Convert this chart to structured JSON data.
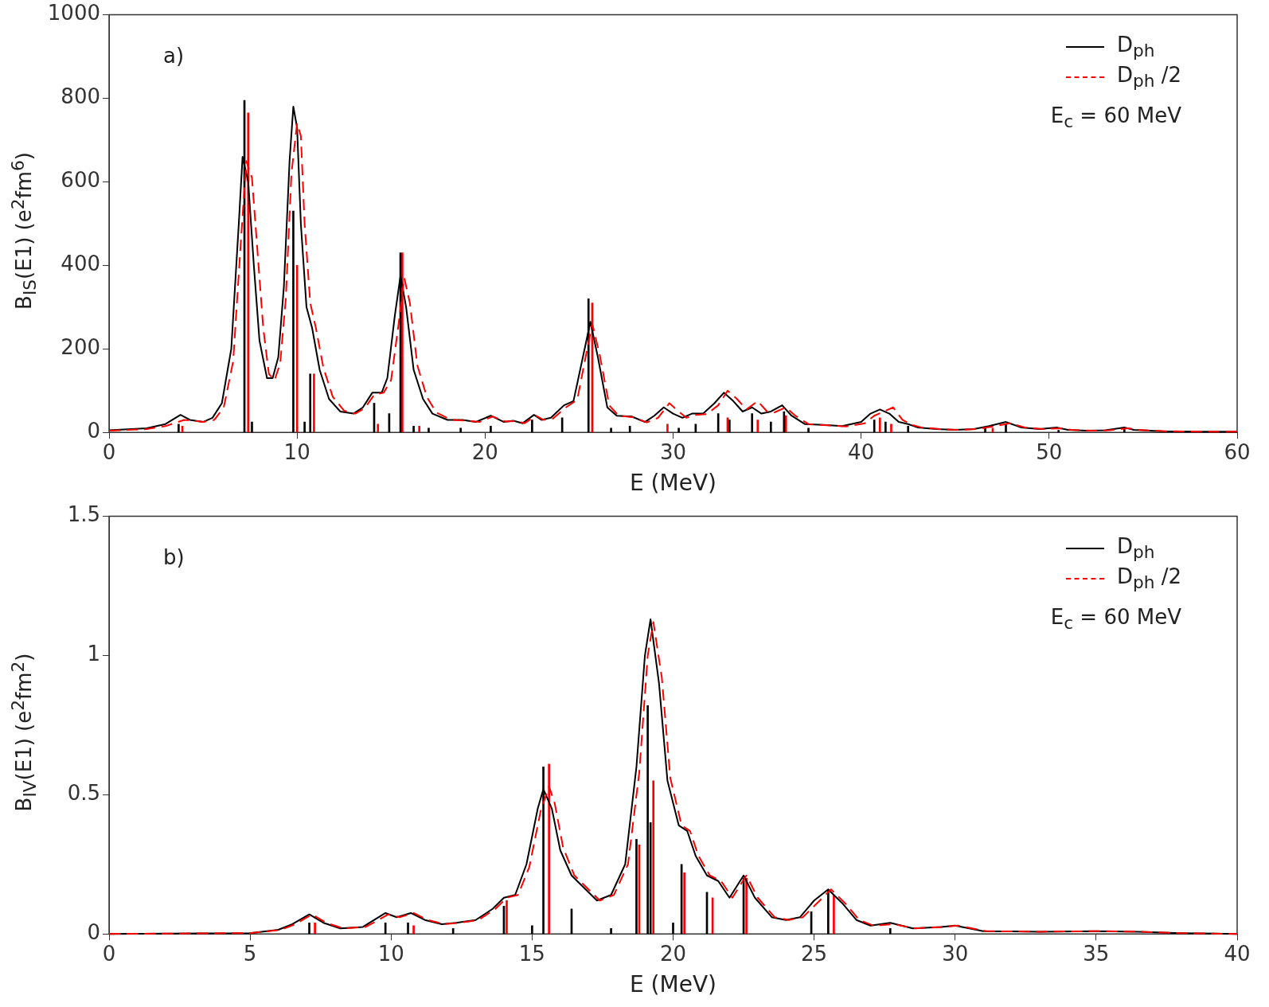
{
  "chart_data": [
    {
      "type": "line",
      "xlabel": "E (MeV)",
      "ylabel": "B$_{IS}$(E1) (e$^{2}$fm$^{6}$)",
      "xlim": [
        0,
        60
      ],
      "ylim": [
        0,
        1000
      ],
      "xticks": [
        0,
        10,
        20,
        30,
        40,
        50,
        60
      ],
      "yticks": [
        0,
        200,
        400,
        600,
        800,
        1000
      ],
      "grid": false,
      "legend": "top right",
      "marker": "none",
      "annotations": [
        "a)",
        "E$_{c}$ = 60 MeV"
      ],
      "series": [
        {
          "type": "bar",
          "color": "#000000",
          "x": [
            3.7,
            7.2,
            7.6,
            9.8,
            10.4,
            10.7,
            14.1,
            14.9,
            15.5,
            16.2,
            17.0,
            18.7,
            20.3,
            22.5,
            24.1,
            25.5,
            26.7,
            27.7,
            30.3,
            31.2,
            32.4,
            33.0,
            34.2,
            35.2,
            35.9,
            37.2,
            40.7,
            41.3,
            42.5,
            46.6,
            47.7,
            50.5,
            54.0
          ],
          "values": [
            20,
            795,
            25,
            530,
            25,
            140,
            70,
            45,
            430,
            15,
            10,
            10,
            15,
            30,
            35,
            320,
            10,
            15,
            10,
            20,
            45,
            30,
            45,
            25,
            50,
            10,
            30,
            25,
            15,
            10,
            20,
            5,
            10
          ]
        },
        {
          "type": "bar",
          "color": "#ff0000",
          "x": [
            3.9,
            7.4,
            10.0,
            10.9,
            14.3,
            15.6,
            16.5,
            25.7,
            29.7,
            32.9,
            34.5,
            36.0,
            41.0,
            41.6,
            47.0
          ],
          "values": [
            15,
            765,
            400,
            140,
            20,
            430,
            15,
            310,
            20,
            35,
            30,
            40,
            35,
            20,
            10
          ]
        },
        {
          "name": "D$_{ph}$",
          "line_style": "solid",
          "color": "#000000",
          "x": [
            0,
            2,
            3,
            3.8,
            4.3,
            5,
            5.5,
            6,
            6.5,
            6.9,
            7.1,
            7.4,
            7.7,
            8.0,
            8.4,
            8.7,
            9.0,
            9.3,
            9.6,
            9.8,
            10.0,
            10.2,
            10.5,
            10.8,
            11.2,
            11.7,
            12.3,
            13,
            13.5,
            14,
            14.5,
            14.8,
            15.2,
            15.5,
            15.8,
            16.2,
            16.7,
            17.2,
            18,
            18.8,
            19.5,
            20.3,
            21,
            21.5,
            22,
            22.6,
            23,
            23.5,
            24.2,
            24.7,
            25.2,
            25.6,
            26,
            26.5,
            27,
            27.8,
            28.5,
            29,
            29.5,
            30,
            30.5,
            31,
            31.6,
            32.2,
            32.7,
            33.2,
            33.7,
            34.2,
            34.7,
            35.2,
            35.8,
            36.3,
            37,
            38,
            39,
            40,
            40.5,
            41,
            41.5,
            42,
            42.5,
            43,
            44,
            45,
            46,
            46.8,
            47.7,
            48.5,
            49.5,
            50.4,
            51,
            52,
            53,
            54,
            54.5,
            56,
            58,
            60
          ],
          "values": [
            5,
            10,
            20,
            42,
            30,
            25,
            35,
            70,
            200,
            500,
            660,
            600,
            400,
            220,
            130,
            130,
            180,
            350,
            650,
            780,
            730,
            500,
            300,
            250,
            150,
            80,
            50,
            45,
            60,
            95,
            95,
            130,
            280,
            375,
            300,
            150,
            80,
            45,
            30,
            30,
            25,
            40,
            25,
            28,
            22,
            42,
            30,
            35,
            65,
            75,
            180,
            265,
            180,
            60,
            40,
            38,
            25,
            40,
            60,
            45,
            35,
            45,
            45,
            70,
            95,
            75,
            50,
            60,
            45,
            50,
            65,
            40,
            20,
            18,
            15,
            25,
            45,
            55,
            45,
            25,
            20,
            12,
            8,
            6,
            8,
            15,
            25,
            12,
            8,
            12,
            6,
            4,
            5,
            12,
            6,
            3,
            2,
            2
          ]
        },
        {
          "name": "D$_{ph}$ /2",
          "line_style": "dashed",
          "color": "#ff0000",
          "x": [
            0,
            2,
            3,
            4.0,
            4.5,
            5,
            5.6,
            6.1,
            6.6,
            7.0,
            7.3,
            7.6,
            7.9,
            8.2,
            8.5,
            8.8,
            9.1,
            9.4,
            9.7,
            10.0,
            10.2,
            10.4,
            10.7,
            11.0,
            11.4,
            11.9,
            12.5,
            13.1,
            13.6,
            14.1,
            14.6,
            15.0,
            15.4,
            15.7,
            16.0,
            16.4,
            16.9,
            17.4,
            18.2,
            19.0,
            19.7,
            20.4,
            21.1,
            21.6,
            22.1,
            22.7,
            23.1,
            23.6,
            24.3,
            24.9,
            25.3,
            25.7,
            26.1,
            26.6,
            27.1,
            27.9,
            28.6,
            29.2,
            29.8,
            30.3,
            30.7,
            31.2,
            31.8,
            32.4,
            32.9,
            33.4,
            33.9,
            34.5,
            35.0,
            35.4,
            36.0,
            36.5,
            37.2,
            38.2,
            39.2,
            40.2,
            40.7,
            41.2,
            41.7,
            42.2,
            42.7,
            43.2,
            44.2,
            45.2,
            46.2,
            47.0,
            47.9,
            48.7,
            49.7,
            50.6,
            51.2,
            52.2,
            53.2,
            54.2,
            54.7,
            56.2,
            58,
            60
          ],
          "values": [
            4,
            8,
            15,
            30,
            28,
            25,
            30,
            60,
            170,
            450,
            650,
            610,
            430,
            250,
            140,
            125,
            165,
            320,
            620,
            740,
            710,
            500,
            310,
            250,
            155,
            85,
            52,
            45,
            58,
            90,
            95,
            125,
            260,
            370,
            310,
            160,
            85,
            48,
            30,
            28,
            25,
            38,
            26,
            27,
            22,
            40,
            30,
            33,
            60,
            78,
            170,
            260,
            185,
            65,
            40,
            36,
            24,
            35,
            70,
            50,
            35,
            42,
            44,
            65,
            100,
            80,
            55,
            75,
            50,
            48,
            60,
            40,
            20,
            17,
            14,
            22,
            40,
            50,
            60,
            30,
            18,
            12,
            8,
            6,
            8,
            14,
            22,
            12,
            8,
            10,
            6,
            4,
            5,
            10,
            6,
            3,
            2,
            2
          ]
        }
      ]
    },
    {
      "type": "line",
      "xlabel": "E (MeV)",
      "ylabel": "B$_{IV}$(E1) (e$^{2}$fm$^{2}$)",
      "xlim": [
        0,
        40
      ],
      "ylim": [
        0,
        1.5
      ],
      "xticks": [
        0,
        5,
        10,
        15,
        20,
        25,
        30,
        35,
        40
      ],
      "yticks": [
        0,
        0.5,
        1,
        1.5
      ],
      "grid": false,
      "legend": "top right",
      "marker": "none",
      "annotations": [
        "b)",
        "E$_{c}$ = 60 MeV"
      ],
      "series": [
        {
          "type": "bar",
          "color": "#000000",
          "x": [
            7.1,
            9.8,
            10.6,
            12.2,
            14.0,
            15.0,
            15.4,
            16.4,
            17.8,
            18.7,
            19.1,
            19.2,
            20.0,
            20.3,
            21.2,
            22.5,
            24.9,
            25.5,
            27.7
          ],
          "values": [
            0.04,
            0.04,
            0.04,
            0.02,
            0.1,
            0.03,
            0.6,
            0.09,
            0.02,
            0.34,
            0.82,
            0.4,
            0.04,
            0.25,
            0.15,
            0.2,
            0.08,
            0.16,
            0.02
          ]
        },
        {
          "type": "bar",
          "color": "#ff0000",
          "x": [
            7.3,
            10.8,
            14.1,
            15.6,
            18.8,
            19.3,
            20.4,
            21.4,
            22.6,
            25.7
          ],
          "values": [
            0.04,
            0.03,
            0.12,
            0.61,
            0.32,
            0.55,
            0.22,
            0.13,
            0.2,
            0.14
          ]
        },
        {
          "name": "D$_{ph}$",
          "line_style": "solid",
          "color": "#000000",
          "x": [
            0,
            5,
            6,
            6.5,
            7.1,
            7.6,
            8.2,
            9,
            9.8,
            10.2,
            10.7,
            11.2,
            11.8,
            12.3,
            13,
            13.6,
            14,
            14.4,
            14.8,
            15.2,
            15.4,
            15.7,
            16,
            16.4,
            16.8,
            17.3,
            17.8,
            18.3,
            18.7,
            19.0,
            19.2,
            19.5,
            19.8,
            20.2,
            20.5,
            20.8,
            21.2,
            21.6,
            22.0,
            22.5,
            22.9,
            23.5,
            24,
            24.5,
            25,
            25.5,
            26,
            26.5,
            27,
            27.7,
            28.5,
            29.5,
            30,
            31,
            33,
            35,
            36.5,
            38,
            40
          ],
          "values": [
            0,
            0.003,
            0.015,
            0.035,
            0.07,
            0.04,
            0.02,
            0.025,
            0.075,
            0.06,
            0.075,
            0.05,
            0.035,
            0.04,
            0.05,
            0.09,
            0.13,
            0.14,
            0.25,
            0.45,
            0.52,
            0.45,
            0.3,
            0.21,
            0.17,
            0.12,
            0.14,
            0.25,
            0.6,
            1.0,
            1.13,
            0.9,
            0.55,
            0.39,
            0.37,
            0.28,
            0.21,
            0.19,
            0.13,
            0.21,
            0.13,
            0.06,
            0.05,
            0.06,
            0.12,
            0.16,
            0.11,
            0.05,
            0.03,
            0.04,
            0.02,
            0.025,
            0.03,
            0.01,
            0.008,
            0.01,
            0.008,
            0.003,
            0
          ]
        },
        {
          "name": "D$_{ph}$ /2",
          "line_style": "dashed",
          "color": "#ff0000",
          "x": [
            0,
            5,
            6.1,
            6.6,
            7.2,
            7.7,
            8.3,
            9.1,
            9.9,
            10.3,
            10.8,
            11.3,
            11.9,
            12.4,
            13.1,
            13.7,
            14.1,
            14.5,
            14.9,
            15.3,
            15.6,
            15.8,
            16.1,
            16.5,
            16.9,
            17.4,
            17.9,
            18.4,
            18.8,
            19.1,
            19.3,
            19.6,
            19.9,
            20.3,
            20.6,
            20.9,
            21.3,
            21.7,
            22.1,
            22.6,
            23.0,
            23.6,
            24.1,
            24.6,
            25.1,
            25.6,
            26.1,
            26.6,
            27.1,
            27.8,
            28.6,
            29.6,
            30.1,
            31.1,
            33,
            35,
            36.5,
            38,
            40
          ],
          "values": [
            0,
            0.003,
            0.015,
            0.035,
            0.07,
            0.04,
            0.02,
            0.025,
            0.07,
            0.06,
            0.075,
            0.05,
            0.035,
            0.04,
            0.05,
            0.09,
            0.13,
            0.14,
            0.24,
            0.44,
            0.53,
            0.47,
            0.31,
            0.21,
            0.17,
            0.12,
            0.14,
            0.25,
            0.58,
            1.0,
            1.12,
            0.92,
            0.56,
            0.39,
            0.37,
            0.28,
            0.21,
            0.19,
            0.13,
            0.21,
            0.13,
            0.06,
            0.05,
            0.06,
            0.11,
            0.16,
            0.11,
            0.05,
            0.03,
            0.035,
            0.02,
            0.025,
            0.03,
            0.01,
            0.008,
            0.01,
            0.008,
            0.003,
            0
          ]
        }
      ]
    }
  ]
}
